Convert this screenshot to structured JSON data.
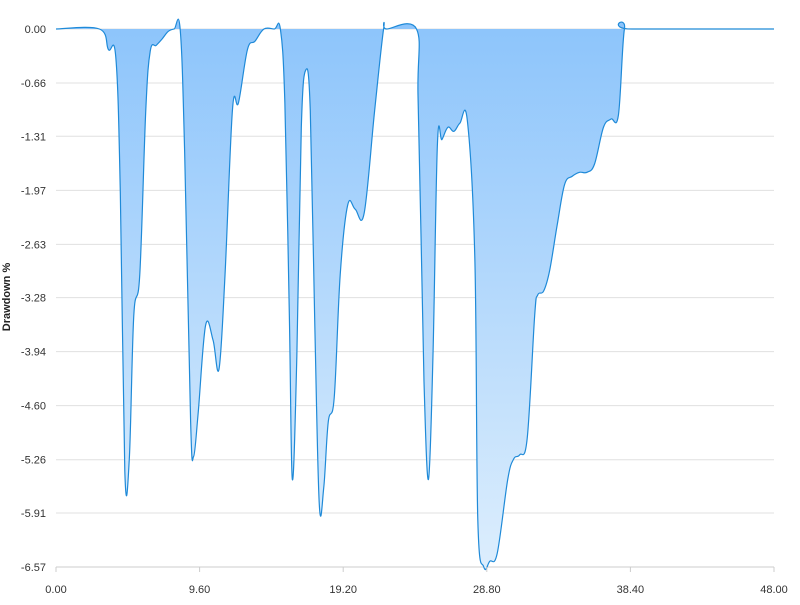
{
  "chart_data": {
    "type": "area",
    "title": "",
    "xlabel": "",
    "ylabel": "Drawdown %",
    "xlim": [
      0,
      48
    ],
    "ylim": [
      -6.57,
      0
    ],
    "x_ticks": [
      "0.00",
      "9.60",
      "19.20",
      "28.80",
      "38.40",
      "48.00"
    ],
    "y_ticks": [
      "0.00",
      "-0.66",
      "-1.31",
      "-1.97",
      "-2.63",
      "-3.28",
      "-3.94",
      "-4.60",
      "-5.26",
      "-5.91",
      "-6.57"
    ],
    "grid": "horizontal",
    "legend": "none",
    "colors": {
      "line": "#1f8ad8",
      "fill_top": "#8cc4fb",
      "fill_bottom": "#ddeefd",
      "grid": "#e0e0e0"
    },
    "series": [
      {
        "x": [
          0,
          2.9,
          3.5,
          4.0,
          4.3,
          4.6,
          4.9,
          5.2,
          5.6,
          6.0,
          6.3,
          6.7,
          7.1,
          7.5,
          7.9,
          8.3,
          8.6,
          9.0,
          9.2,
          9.5,
          10.0,
          10.5,
          10.9,
          11.3,
          11.8,
          12.2,
          12.8,
          13.3,
          13.9,
          14.6,
          15.0,
          15.3,
          15.6,
          15.8,
          16.1,
          16.4,
          16.7,
          17.0,
          17.3,
          17.6,
          17.9,
          18.2,
          18.6,
          19.0,
          19.5,
          20.0,
          20.6,
          21.3,
          21.9,
          22.1,
          24.1,
          24.2,
          24.4,
          24.6,
          24.9,
          25.2,
          25.5,
          25.8,
          26.2,
          26.6,
          27.0,
          27.5,
          28.0,
          28.2,
          28.6,
          29.0,
          29.5,
          30.2,
          30.6,
          31.0,
          31.5,
          32.0,
          32.2,
          32.6,
          33.0,
          33.5,
          34.0,
          34.5,
          35.0,
          35.5,
          36.0,
          36.6,
          37.1,
          37.6,
          38.0,
          38.5,
          48.0
        ],
        "values": [
          0.0,
          0.0,
          -0.25,
          -0.35,
          -2.0,
          -5.4,
          -5.25,
          -3.5,
          -3.0,
          -1.0,
          -0.27,
          -0.2,
          -0.12,
          -0.03,
          0.0,
          0.0,
          -1.5,
          -4.8,
          -5.22,
          -4.7,
          -3.62,
          -3.8,
          -4.15,
          -3.0,
          -0.98,
          -0.9,
          -0.25,
          -0.15,
          0.0,
          0.0,
          0.0,
          -0.9,
          -3.5,
          -5.5,
          -4.0,
          -1.2,
          -0.5,
          -1.0,
          -3.6,
          -5.8,
          -5.6,
          -4.8,
          -4.5,
          -3.0,
          -2.15,
          -2.2,
          -2.25,
          -1.0,
          0.0,
          0.0,
          0.0,
          -0.8,
          -2.5,
          -4.3,
          -5.5,
          -4.0,
          -1.4,
          -1.35,
          -1.2,
          -1.25,
          -1.15,
          -1.12,
          -2.8,
          -6.0,
          -6.57,
          -6.5,
          -6.4,
          -5.5,
          -5.25,
          -5.2,
          -5.0,
          -3.5,
          -3.25,
          -3.2,
          -2.95,
          -2.4,
          -1.9,
          -1.8,
          -1.75,
          -1.75,
          -1.65,
          -1.2,
          -1.1,
          -1.05,
          0.0,
          0.0,
          0.0
        ]
      }
    ]
  }
}
